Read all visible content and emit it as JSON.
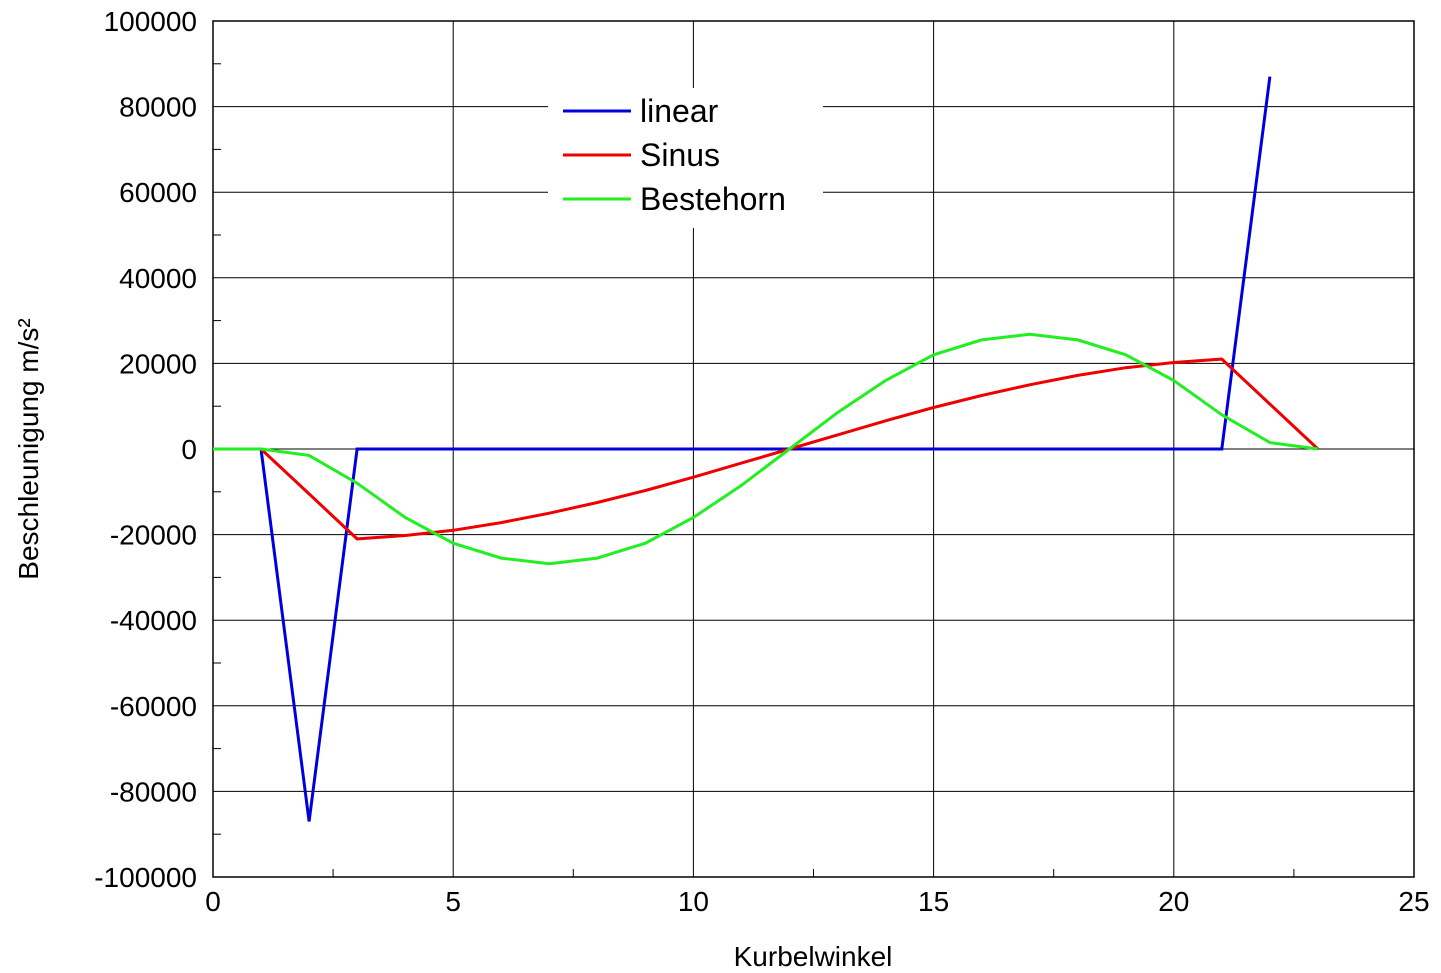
{
  "chart_data": {
    "type": "line",
    "title": "",
    "xlabel": "Kurbelwinkel",
    "ylabel": "Beschleunigung m/s²",
    "xlim": [
      0,
      25
    ],
    "ylim": [
      -100000,
      100000
    ],
    "xticks": [
      0,
      5,
      10,
      15,
      20,
      25
    ],
    "yticks": [
      100000,
      80000,
      60000,
      40000,
      20000,
      0,
      -20000,
      -40000,
      -60000,
      -80000,
      -100000
    ],
    "xtick_labels": [
      "0",
      "5",
      "10",
      "15",
      "20",
      "25"
    ],
    "ytick_labels": [
      "100000",
      "80000",
      "60000",
      "40000",
      "20000",
      "0",
      "-20000",
      "-40000",
      "-60000",
      "-80000",
      "-100000"
    ],
    "grid": true,
    "legend_position": "top-center",
    "series": [
      {
        "name": "linear",
        "color": "#0000dd",
        "x": [
          0,
          1,
          2,
          3,
          4,
          5,
          6,
          7,
          8,
          9,
          10,
          11,
          12,
          13,
          14,
          15,
          16,
          17,
          18,
          19,
          20,
          21,
          22
        ],
        "y": [
          0,
          0,
          -87000,
          0,
          0,
          0,
          0,
          0,
          0,
          0,
          0,
          0,
          0,
          0,
          0,
          0,
          0,
          0,
          0,
          0,
          0,
          0,
          87000
        ]
      },
      {
        "name": "Sinus",
        "color": "#ee0000",
        "x": [
          0,
          1,
          2,
          3,
          4,
          5,
          6,
          7,
          8,
          9,
          10,
          11,
          12,
          13,
          14,
          15,
          16,
          17,
          18,
          19,
          20,
          21,
          22,
          23
        ],
        "y": [
          0,
          0,
          -10500,
          -21000,
          -20200,
          -19000,
          -17200,
          -15000,
          -12500,
          -9700,
          -6600,
          -3300,
          0,
          3300,
          6600,
          9700,
          12500,
          15000,
          17200,
          19000,
          20200,
          21000,
          10500,
          0
        ]
      },
      {
        "name": "Bestehorn",
        "color": "#22ee22",
        "x": [
          0,
          1,
          2,
          3,
          4,
          5,
          6,
          7,
          8,
          9,
          10,
          11,
          12,
          13,
          14,
          15,
          16,
          17,
          18,
          19,
          20,
          21,
          22,
          23
        ],
        "y": [
          0,
          0,
          -1500,
          -8000,
          -16000,
          -22000,
          -25500,
          -26800,
          -25500,
          -22000,
          -16000,
          -8500,
          0,
          8500,
          16000,
          22000,
          25500,
          26800,
          25500,
          22000,
          16000,
          8000,
          1500,
          0
        ]
      }
    ]
  }
}
